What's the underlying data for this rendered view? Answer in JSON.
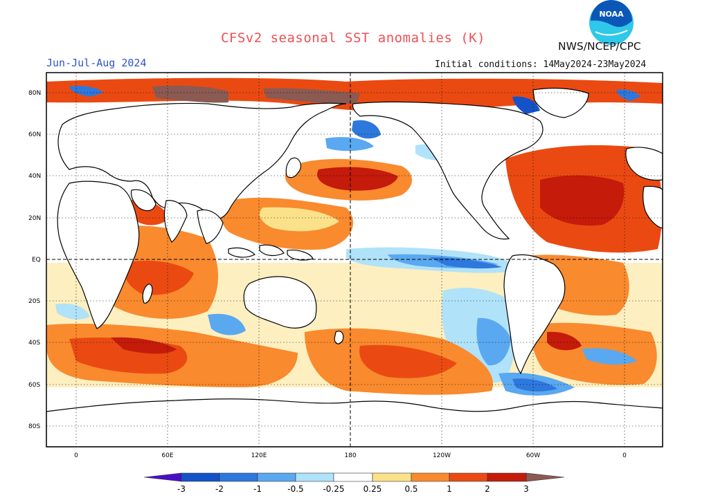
{
  "header": {
    "title": "CFSv2 seasonal SST anomalies (K)",
    "season": "Jun-Jul-Aug 2024",
    "initial_conditions": "Initial conditions: 14May2024-23May2024",
    "agency": "NWS/NCEP/CPC",
    "logo_text": "NOAA"
  },
  "map": {
    "lat_labels": [
      "80N",
      "60N",
      "40N",
      "20N",
      "EQ",
      "20S",
      "40S",
      "60S",
      "80S"
    ],
    "lon_labels": [
      "0",
      "60E",
      "120E",
      "180",
      "120W",
      "60W",
      "0"
    ],
    "reference_lines": [
      "equator",
      "dateline"
    ]
  },
  "legend": {
    "tick_labels": [
      "-3",
      "-2",
      "-1",
      "-0.5",
      "-0.25",
      "0.25",
      "0.5",
      "1",
      "2",
      "3"
    ],
    "colors": {
      "below_-3": "#4a0fc9",
      "-3_to_-2": "#1452c8",
      "-2_to_-1": "#2e78dd",
      "-1_to_-0.5": "#5aa8f0",
      "-0.5_to_-0.25": "#b0e2fa",
      "-0.25_to_0.25": "#ffffff",
      "0.25_to_0.5": "#fbe28a",
      "0.5_to_1": "#f98a2e",
      "1_to_2": "#ea4a12",
      "2_to_3": "#c41b0b",
      "above_3": "#8b5a52"
    }
  },
  "colors": {
    "title": "#ef4f55",
    "season": "#2f52c9",
    "text": "#111111",
    "logo_outer": "#0b57b8",
    "logo_inner": "#2fc8e8"
  }
}
